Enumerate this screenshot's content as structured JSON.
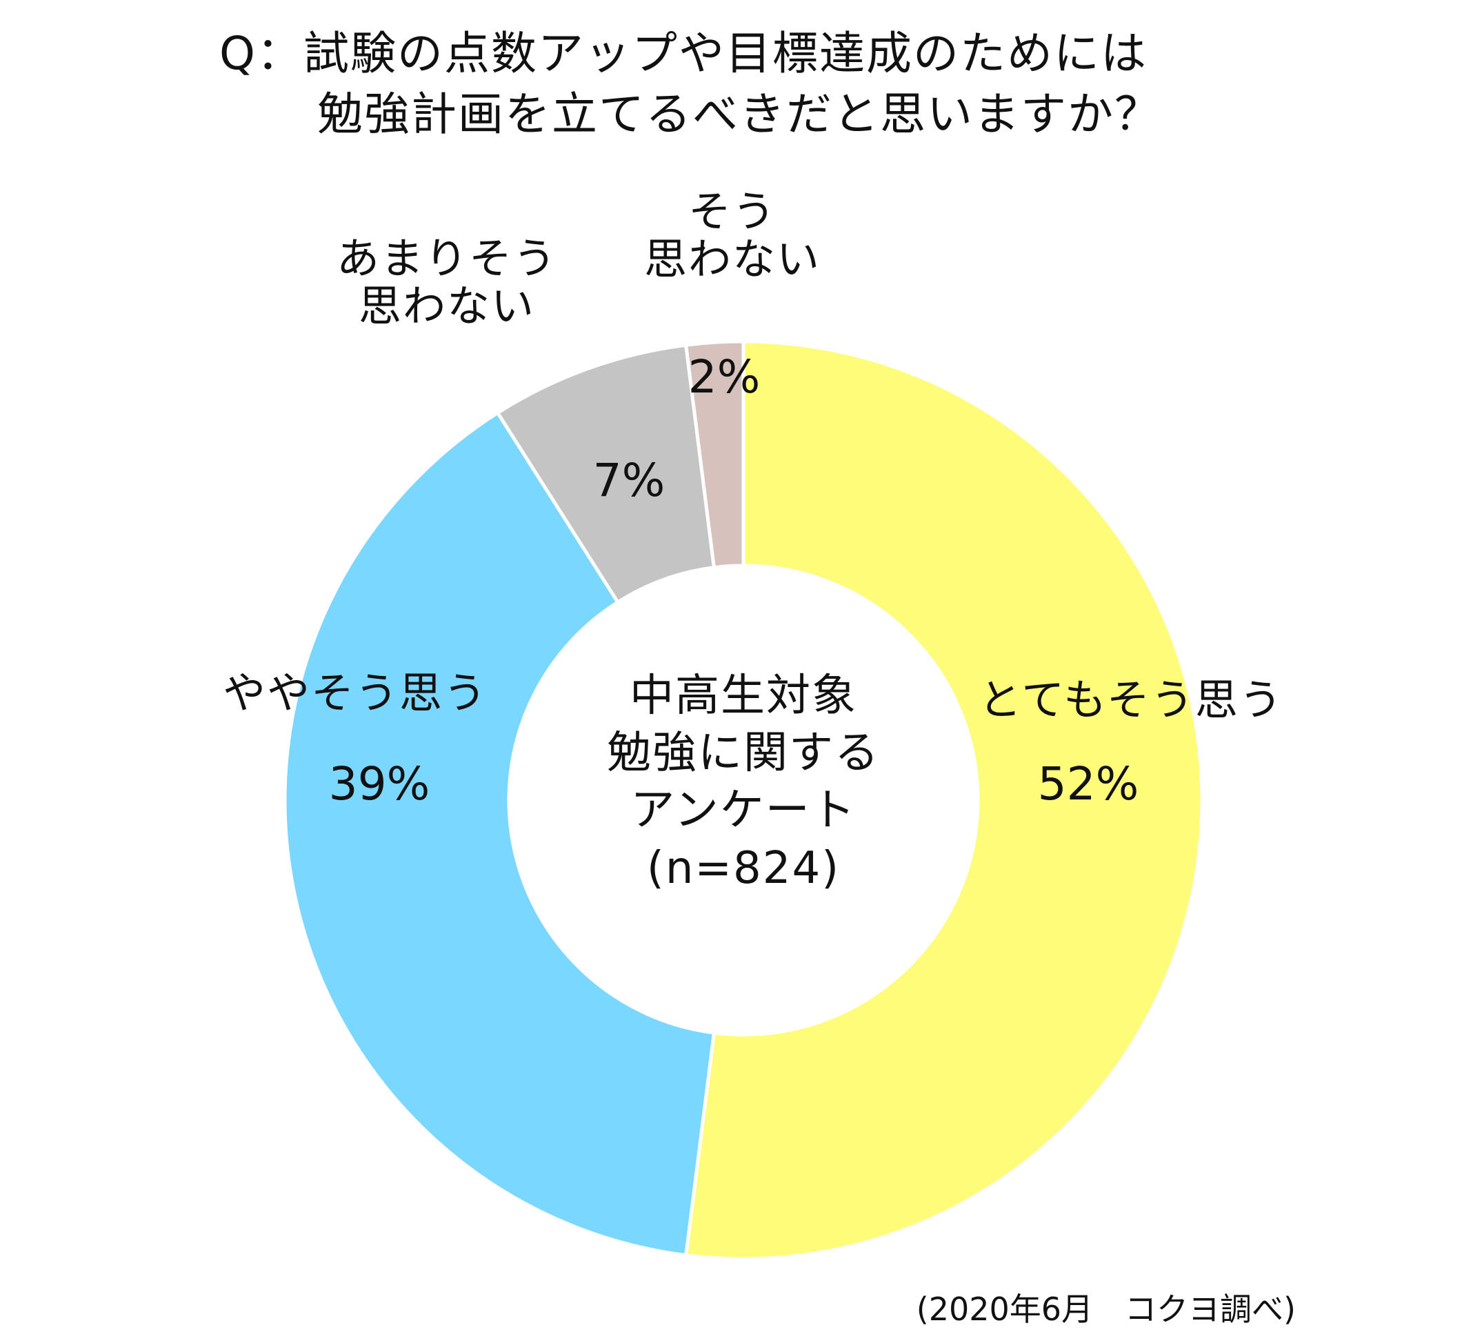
{
  "chart_data": {
    "type": "pie",
    "title": [
      "Q：試験の点数アップや目標達成のためには",
      "勉強計画を立てるべきだと思いますか？"
    ],
    "center_label": [
      "中高生対象",
      "勉強に関する",
      "アンケート",
      "(n=824)"
    ],
    "slices": [
      {
        "name": "とてもそう思う",
        "lines": [
          "とてもそう思う"
        ],
        "value": 52,
        "label": "52%",
        "color": "#FFFC7A"
      },
      {
        "name": "ややそう思う",
        "lines": [
          "ややそう思う"
        ],
        "value": 39,
        "label": "39%",
        "color": "#7AD7FF"
      },
      {
        "name": "あまりそう思わない",
        "lines": [
          "あまりそう",
          "思わない"
        ],
        "value": 7,
        "label": "7%",
        "color": "#C4C4C4"
      },
      {
        "name": "そう思わない",
        "lines": [
          "そう",
          "思わない"
        ],
        "value": 2,
        "label": "2%",
        "color": "#D6C1BC"
      }
    ],
    "source": "(2020年6月　コクヨ調べ)"
  }
}
